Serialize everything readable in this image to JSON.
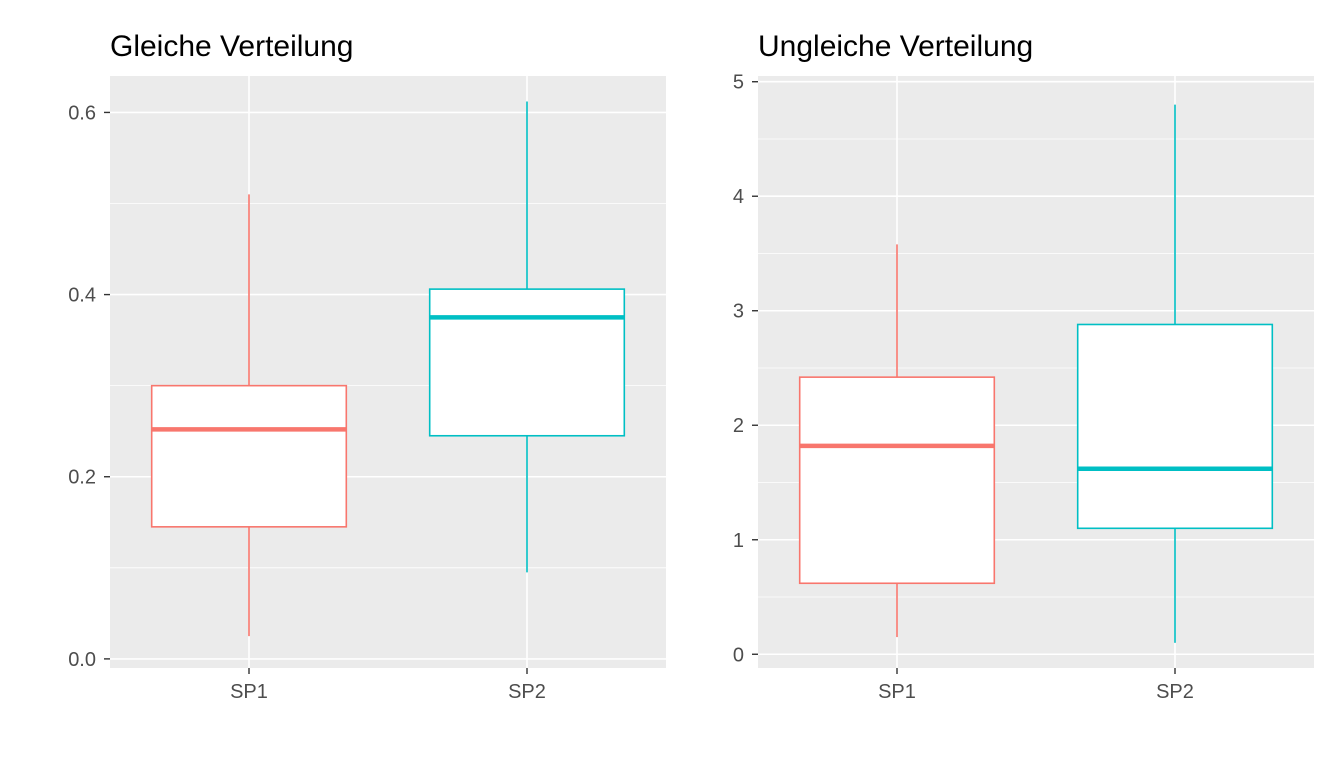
{
  "chart_data": [
    {
      "type": "boxplot",
      "title": "Gleiche Verteilung",
      "xlabel": "",
      "ylabel": "",
      "categories": [
        "SP1",
        "SP2"
      ],
      "ylim": [
        -0.01,
        0.64
      ],
      "yticks": [
        0.0,
        0.2,
        0.4,
        0.6
      ],
      "ytick_labels": [
        "0.0",
        "0.2",
        "0.4",
        "0.6"
      ],
      "grid": true,
      "series": [
        {
          "category": "SP1",
          "color": "#F8766D",
          "whisker_low": 0.025,
          "q1": 0.145,
          "median": 0.252,
          "q3": 0.3,
          "whisker_high": 0.51
        },
        {
          "category": "SP2",
          "color": "#00BFC4",
          "whisker_low": 0.095,
          "q1": 0.245,
          "median": 0.375,
          "q3": 0.406,
          "whisker_high": 0.612
        }
      ]
    },
    {
      "type": "boxplot",
      "title": "Ungleiche Verteilung",
      "xlabel": "",
      "ylabel": "",
      "categories": [
        "SP1",
        "SP2"
      ],
      "ylim": [
        -0.12,
        5.05
      ],
      "yticks": [
        0,
        1,
        2,
        3,
        4,
        5
      ],
      "ytick_labels": [
        "0",
        "1",
        "2",
        "3",
        "4",
        "5"
      ],
      "grid": true,
      "series": [
        {
          "category": "SP1",
          "color": "#F8766D",
          "whisker_low": 0.15,
          "q1": 0.62,
          "median": 1.82,
          "q3": 2.42,
          "whisker_high": 3.58
        },
        {
          "category": "SP2",
          "color": "#00BFC4",
          "whisker_low": 0.1,
          "q1": 1.1,
          "median": 1.62,
          "q3": 2.88,
          "whisker_high": 4.8
        }
      ]
    }
  ]
}
